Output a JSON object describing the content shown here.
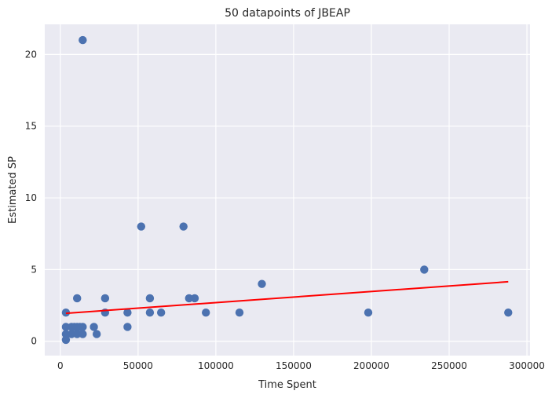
{
  "chart_data": {
    "type": "scatter",
    "title": "50 datapoints of JBEAP",
    "xlabel": "Time Spent",
    "ylabel": "Estimated SP",
    "xlim": [
      -10000,
      302000
    ],
    "ylim": [
      -1,
      22.1
    ],
    "xticks": [
      0,
      50000,
      100000,
      150000,
      200000,
      250000,
      300000
    ],
    "xtick_labels": [
      "0",
      "50000",
      "100000",
      "150000",
      "200000",
      "250000",
      "300000"
    ],
    "yticks": [
      0,
      5,
      10,
      15,
      20
    ],
    "ytick_labels": [
      "0",
      "5",
      "10",
      "15",
      "20"
    ],
    "grid": true,
    "background": "#eaeaf2",
    "grid_color": "#ffffff",
    "point_color": "#4c72b0",
    "line_color": "#ff0000",
    "points": [
      {
        "x": 14400,
        "y": 21
      },
      {
        "x": 3600,
        "y": 2
      },
      {
        "x": 3600,
        "y": 1
      },
      {
        "x": 3600,
        "y": 0.5
      },
      {
        "x": 3600,
        "y": 0.1
      },
      {
        "x": 7200,
        "y": 1
      },
      {
        "x": 7200,
        "y": 0.5
      },
      {
        "x": 9000,
        "y": 1
      },
      {
        "x": 10800,
        "y": 3
      },
      {
        "x": 10800,
        "y": 1
      },
      {
        "x": 10800,
        "y": 0.5
      },
      {
        "x": 12600,
        "y": 1
      },
      {
        "x": 14400,
        "y": 1
      },
      {
        "x": 14400,
        "y": 0.5
      },
      {
        "x": 21600,
        "y": 1
      },
      {
        "x": 23400,
        "y": 0.5
      },
      {
        "x": 28800,
        "y": 3
      },
      {
        "x": 28800,
        "y": 2
      },
      {
        "x": 43200,
        "y": 2
      },
      {
        "x": 43200,
        "y": 1
      },
      {
        "x": 52000,
        "y": 8
      },
      {
        "x": 57600,
        "y": 3
      },
      {
        "x": 57600,
        "y": 2
      },
      {
        "x": 64800,
        "y": 2
      },
      {
        "x": 79200,
        "y": 8
      },
      {
        "x": 82800,
        "y": 3
      },
      {
        "x": 86400,
        "y": 3
      },
      {
        "x": 93600,
        "y": 2
      },
      {
        "x": 115200,
        "y": 2
      },
      {
        "x": 129600,
        "y": 4
      },
      {
        "x": 198000,
        "y": 2
      },
      {
        "x": 234000,
        "y": 5
      },
      {
        "x": 288000,
        "y": 2
      }
    ],
    "regression_line": {
      "x": [
        3600,
        288000
      ],
      "y": [
        1.95,
        4.15
      ]
    }
  }
}
